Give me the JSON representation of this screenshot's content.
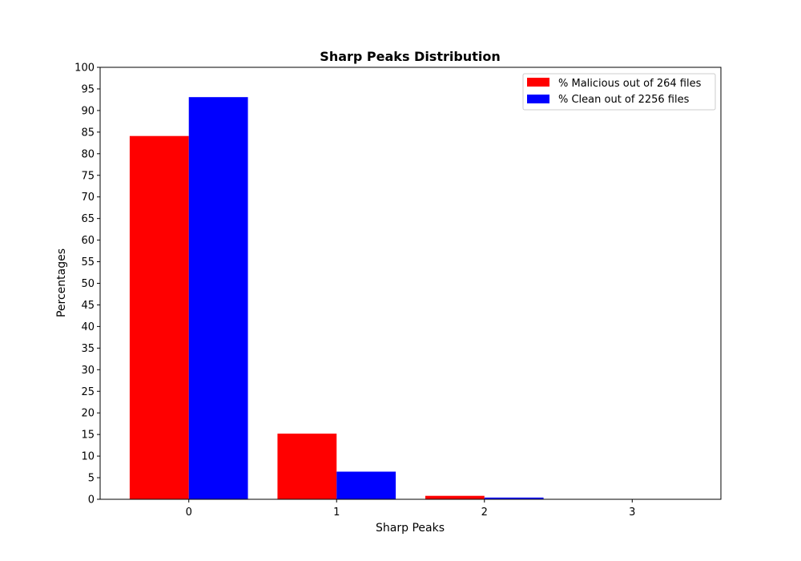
{
  "chart_data": {
    "type": "bar",
    "title": "Sharp Peaks Distribution",
    "xlabel": "Sharp Peaks",
    "ylabel": "Percentages",
    "categories": [
      "0",
      "1",
      "2",
      "3"
    ],
    "ylim": [
      0,
      100
    ],
    "yticks": [
      0,
      5,
      10,
      15,
      20,
      25,
      30,
      35,
      40,
      45,
      50,
      55,
      60,
      65,
      70,
      75,
      80,
      85,
      90,
      95,
      100
    ],
    "grid": false,
    "legend_position": "top-right",
    "series": [
      {
        "name": "% Malicious out of 264 files",
        "color": "#ff0000",
        "values": [
          84.1,
          15.2,
          0.8,
          0.0
        ]
      },
      {
        "name": "% Clean out of 2256 files",
        "color": "#0000ff",
        "values": [
          93.1,
          6.4,
          0.4,
          0.0
        ]
      }
    ]
  }
}
